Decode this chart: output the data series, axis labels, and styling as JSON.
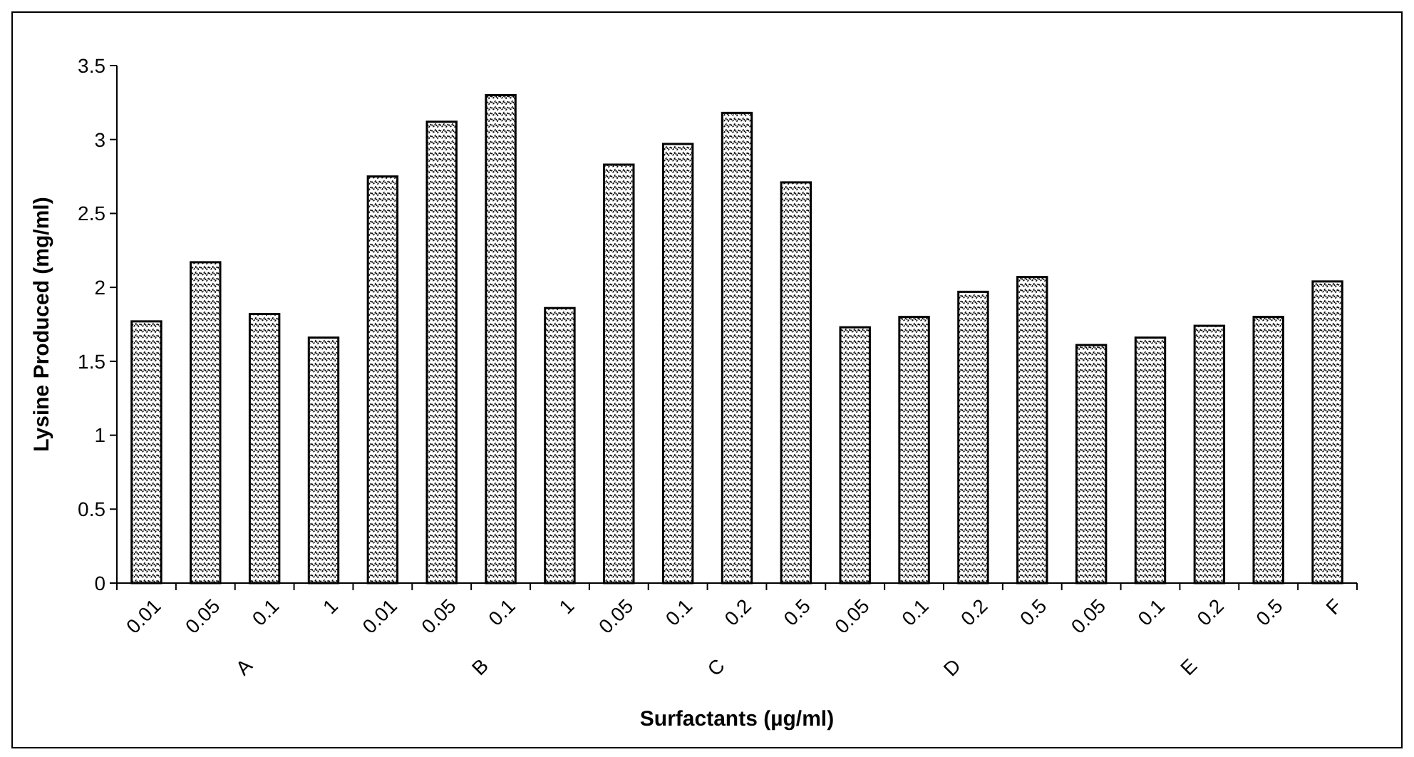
{
  "chart_data": {
    "type": "bar",
    "xlabel": "Surfactants (µg/ml)",
    "ylabel": "Lysine Produced (mg/ml)",
    "categories": [
      "0.01",
      "0.05",
      "0.1",
      "1",
      "0.01",
      "0.05",
      "0.1",
      "1",
      "0.05",
      "0.1",
      "0.2",
      "0.5",
      "0.05",
      "0.1",
      "0.2",
      "0.5",
      "0.05",
      "0.1",
      "0.2",
      "0.5",
      "F"
    ],
    "values": [
      1.77,
      2.17,
      1.82,
      1.66,
      2.75,
      3.12,
      3.3,
      1.86,
      2.83,
      2.97,
      3.18,
      2.71,
      1.73,
      1.8,
      1.97,
      2.07,
      1.61,
      1.66,
      1.74,
      1.8,
      2.04
    ],
    "color": "#000000",
    "ylim": [
      0,
      3.5
    ],
    "yticks": [
      0,
      0.5,
      1,
      1.5,
      2,
      2.5,
      3,
      3.5
    ],
    "grid": false,
    "annotations": [
      "A",
      "B",
      "C",
      "D",
      "E"
    ]
  }
}
